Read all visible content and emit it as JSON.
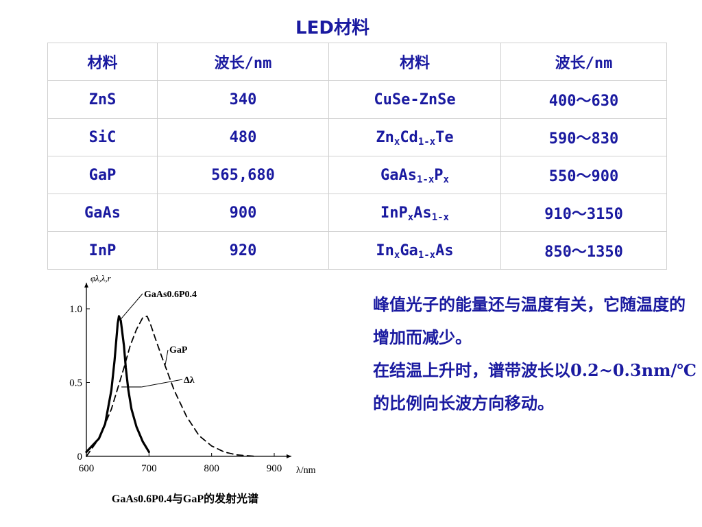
{
  "title": "LED材料",
  "table": {
    "headers": [
      "材料",
      "波长/nm",
      "材料",
      "波长/nm"
    ],
    "rows": [
      {
        "m1": "ZnS",
        "w1": "340",
        "m2": "CuSe-ZnSe",
        "w2": "400～630"
      },
      {
        "m1": "SiC",
        "w1": "480",
        "m2": "ZnxCd1-xTe",
        "w2": "590～830"
      },
      {
        "m1": "GaP",
        "w1": "565,680",
        "m2": "GaAs1-xPx",
        "w2": "550～900"
      },
      {
        "m1": "GaAs",
        "w1": "900",
        "m2": "InPxAs1-x",
        "w2": "910～3150"
      },
      {
        "m1": "InP",
        "w1": "920",
        "m2": "InxGa1-xAs",
        "w2": "850～1350"
      }
    ]
  },
  "chart_data": {
    "type": "line",
    "title": "",
    "caption": "GaAs0.6P0.4与GaP的发射光谱",
    "xlabel": "λ/nm",
    "ylabel": "φλ,λ,r",
    "xlim": [
      600,
      900
    ],
    "ylim": [
      0,
      1.0
    ],
    "x_ticks": [
      "600",
      "700",
      "800",
      "900"
    ],
    "y_ticks": [
      "0",
      "0.5",
      "1.0"
    ],
    "grid": false,
    "annotations": [
      "GaAs0.6P0.4",
      "GaP",
      "Δλ"
    ],
    "series": [
      {
        "name": "GaAs0.6P0.4",
        "style": "solid",
        "x": [
          600,
          620,
          630,
          640,
          645,
          650,
          652,
          655,
          660,
          663,
          667,
          672,
          680,
          690,
          700
        ],
        "y": [
          0.03,
          0.12,
          0.22,
          0.45,
          0.65,
          0.9,
          0.95,
          0.92,
          0.75,
          0.6,
          0.45,
          0.32,
          0.2,
          0.1,
          0.03
        ]
      },
      {
        "name": "GaP",
        "style": "dashed",
        "x": [
          600,
          620,
          640,
          660,
          670,
          680,
          690,
          697,
          702,
          710,
          720,
          740,
          760,
          780,
          800,
          820,
          840,
          870
        ],
        "y": [
          0.0,
          0.12,
          0.32,
          0.6,
          0.75,
          0.86,
          0.94,
          0.95,
          0.9,
          0.8,
          0.68,
          0.45,
          0.27,
          0.14,
          0.07,
          0.03,
          0.01,
          0.0
        ]
      }
    ]
  },
  "note": {
    "p1": "峰值光子的能量还与温度有关，它随温度的增加而减少。",
    "p2": "在结温上升时，谱带波长以0.2~0.3nm/℃的比例向长波方向移动。"
  }
}
